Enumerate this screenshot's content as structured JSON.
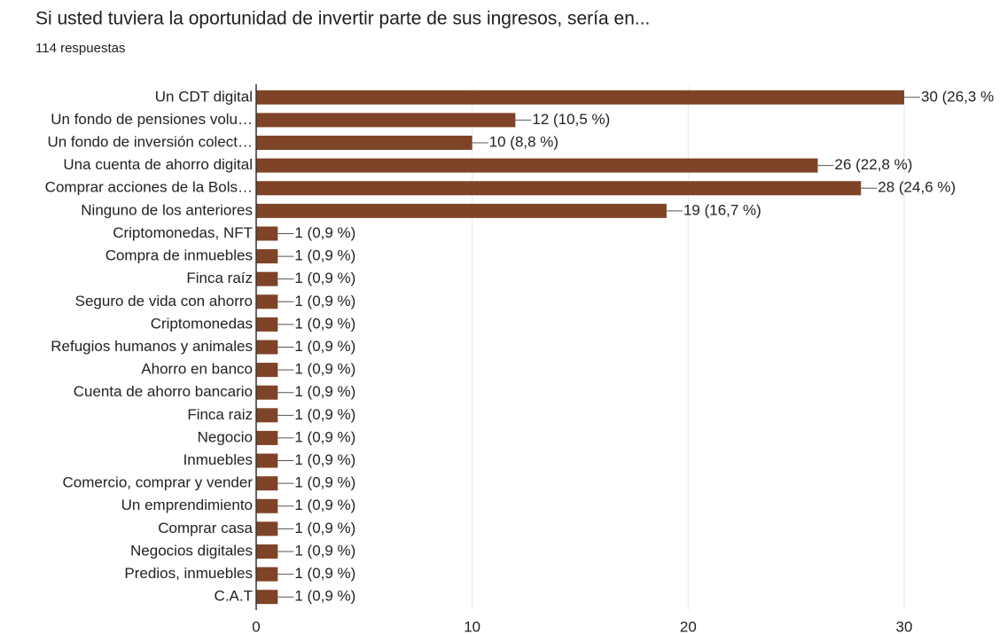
{
  "chart_data": {
    "type": "bar",
    "orientation": "horizontal",
    "title": "Si usted tuviera la oportunidad de invertir parte de sus ingresos, sería en...",
    "subtitle": "114 respuestas",
    "categories": [
      "Un CDT digital",
      "Un fondo de pensiones volu…",
      "Un fondo de inversión colect…",
      "Una cuenta de ahorro digital",
      "Comprar acciones de la Bols…",
      "Ninguno de los anteriores",
      "Criptomonedas, NFT",
      "Compra de inmuebles",
      "Finca raíz",
      "Seguro de vida con ahorro",
      "Criptomonedas",
      "Refugios humanos y animales",
      "Ahorro en banco",
      "Cuenta de ahorro bancario",
      "Finca raiz",
      "Negocio",
      "Inmuebles",
      "Comercio, comprar y vender",
      "Un emprendimiento",
      "Comprar casa",
      "Negocios digitales",
      "Predios, inmuebles",
      "C.A.T"
    ],
    "values": [
      30,
      12,
      10,
      26,
      28,
      19,
      1,
      1,
      1,
      1,
      1,
      1,
      1,
      1,
      1,
      1,
      1,
      1,
      1,
      1,
      1,
      1,
      1
    ],
    "value_labels": [
      "30 (26,3 %",
      "12 (10,5 %)",
      "10 (8,8 %)",
      "26 (22,8 %)",
      "28 (24,6 %)",
      "19 (16,7 %)",
      "1 (0,9 %)",
      "1 (0,9 %)",
      "1 (0,9 %)",
      "1 (0,9 %)",
      "1 (0,9 %)",
      "1 (0,9 %)",
      "1 (0,9 %)",
      "1 (0,9 %)",
      "1 (0,9 %)",
      "1 (0,9 %)",
      "1 (0,9 %)",
      "1 (0,9 %)",
      "1 (0,9 %)",
      "1 (0,9 %)",
      "1 (0,9 %)",
      "1 (0,9 %)",
      "1 (0,9 %)"
    ],
    "color": "#7f4427",
    "xlim": [
      0,
      30
    ],
    "xticks": [
      0,
      10,
      20,
      30
    ],
    "grid": true
  }
}
